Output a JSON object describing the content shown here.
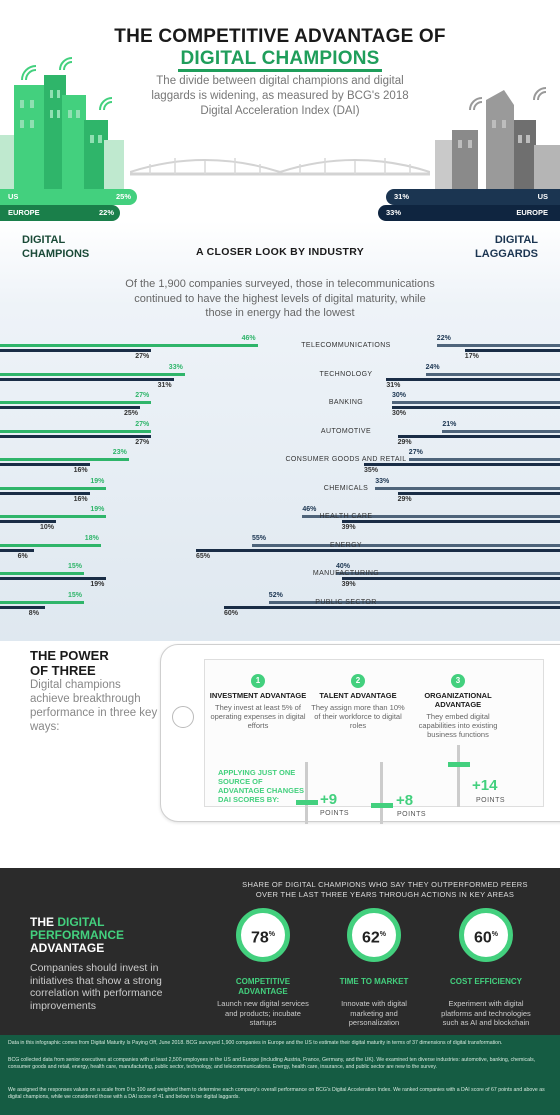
{
  "header": {
    "title_line1": "THE COMPETITIVE ADVANTAGE OF",
    "title_line2": "DIGITAL CHAMPIONS",
    "subtitle": "The divide between digital champions and digital laggards is widening, as measured by BCG's 2018 Digital Acceleration Index (DAI)"
  },
  "regions": {
    "champions": [
      {
        "label": "US",
        "value": "25%"
      },
      {
        "label": "EUROPE",
        "value": "22%"
      }
    ],
    "laggards": [
      {
        "label": "US",
        "value": "31%"
      },
      {
        "label": "EUROPE",
        "value": "33%"
      }
    ]
  },
  "labels": {
    "champions_l1": "DIGITAL",
    "champions_l2": "CHAMPIONS",
    "laggards_l1": "DIGITAL",
    "laggards_l2": "LAGGARDS",
    "closer_look": "A CLOSER LOOK BY INDUSTRY",
    "intro": "Of the 1,900 companies surveyed, those in telecommunications continued to have the highest levels of digital maturity, while those in energy had the lowest"
  },
  "colors": {
    "champion_green": "#2fb56a",
    "champion_dark": "#1a2d46",
    "laggard_navy": "#1b3551"
  },
  "chart_data": {
    "type": "bar",
    "categories": [
      "TELECOMMUNICATIONS",
      "TECHNOLOGY",
      "BANKING",
      "AUTOMOTIVE",
      "CONSUMER GOODS AND RETAIL",
      "CHEMICALS",
      "HEALTH CARE",
      "ENERGY",
      "MANUFACTURING",
      "PUBLIC SECTOR"
    ],
    "series": [
      {
        "values": [
          46,
          33,
          27,
          27,
          23,
          19,
          19,
          18,
          15,
          15
        ],
        "labels": [
          "46%",
          "33%",
          "27%",
          "27%",
          "23%",
          "19%",
          "19%",
          "18%",
          "15%",
          "15%"
        ]
      },
      {
        "values": [
          27,
          31,
          25,
          27,
          16,
          16,
          10,
          6,
          19,
          8
        ],
        "labels": [
          "27%",
          "31%",
          "25%",
          "27%",
          "16%",
          "16%",
          "10%",
          "6%",
          "19%",
          "8%"
        ]
      },
      {
        "values": [
          22,
          24,
          30,
          21,
          27,
          33,
          46,
          55,
          40,
          52
        ],
        "labels": [
          "22%",
          "24%",
          "30%",
          "21%",
          "27%",
          "33%",
          "46%",
          "55%",
          "40%",
          "52%"
        ]
      },
      {
        "values": [
          17,
          31,
          30,
          29,
          35,
          29,
          39,
          65,
          39,
          60
        ],
        "labels": [
          "17%",
          "31%",
          "30%",
          "29%",
          "35%",
          "29%",
          "39%",
          "65%",
          "39%",
          "60%"
        ]
      }
    ]
  },
  "power": {
    "title_l1": "THE POWER",
    "title_l2": "OF THREE",
    "subtitle": "Digital champions achieve breakthrough performance in three key ways:",
    "items": [
      {
        "num": "1",
        "title": "INVESTMENT ADVANTAGE",
        "desc": "They invest at least 5% of operating expenses in digital efforts",
        "plus": "+9",
        "points": "POINTS"
      },
      {
        "num": "2",
        "title": "TALENT ADVANTAGE",
        "desc": "They assign more than 10% of their workforce to digital roles",
        "plus": "+8",
        "points": "POINTS"
      },
      {
        "num": "3",
        "title": "ORGANIZATIONAL ADVANTAGE",
        "desc": "They embed digital capabilities into existing business functions",
        "plus": "+14",
        "points": "POINTS"
      }
    ],
    "applying": "APPLYING JUST ONE SOURCE OF ADVANTAGE CHANGES DAI SCORES BY:",
    "levels": [
      0.35,
      0.3,
      0.7
    ]
  },
  "performance": {
    "title_l1": "THE",
    "title_l1_green": "DIGITAL",
    "title_l2": "PERFORMANCE",
    "title_l3": "ADVANTAGE",
    "subtitle": "Companies should invest in initiatives that show a strong correlation with performance improvements",
    "share_heading": "SHARE OF DIGITAL CHAMPIONS WHO SAY THEY OUTPERFORMED PEERS OVER THE LAST THREE YEARS THROUGH ACTIONS IN KEY AREAS",
    "items": [
      {
        "value": "78",
        "unit": "%",
        "title": "COMPETITIVE ADVANTAGE",
        "desc": "Launch new digital services and products; incubate startups"
      },
      {
        "value": "62",
        "unit": "%",
        "title": "TIME TO MARKET",
        "desc": "Innovate with digital marketing and personalization"
      },
      {
        "value": "60",
        "unit": "%",
        "title": "COST EFFICIENCY",
        "desc": "Experiment with digital platforms and technologies such as AI and blockchain"
      }
    ]
  },
  "footnotes": [
    "Data in this infographic comes from Digital Maturity Is Paying Off, June 2018. BCG surveyed 1,900 companies in Europe and the US to estimate their digital maturity in terms of 37 dimensions of digital transformation.",
    "BCG collected data from senior executives at companies with at least 2,500 employees in the US and Europe (including Austria, France, Germany, and the UK). We examined ten diverse industries: automotive, banking, chemicals, consumer goods and retail, energy, health care, manufacturing, public sector, technology, and telecommunications. Energy, health care, insurance, and public sector are new to the survey.",
    "We assigned the responses values on a scale from 0 to 100 and weighted them to determine each company's overall performance on BCG's Digital Acceleration Index. We ranked companies with a DAI score of 67 points and above as digital champions, while we considered those with a DAI score of 41 and below to be digital laggards."
  ]
}
